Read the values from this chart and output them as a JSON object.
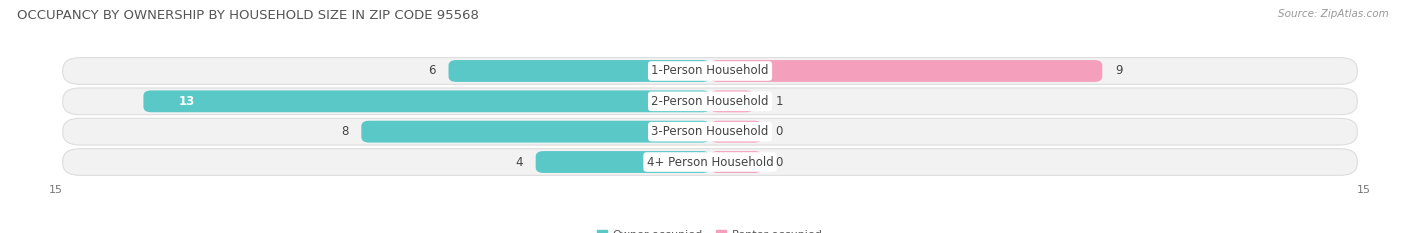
{
  "title": "OCCUPANCY BY OWNERSHIP BY HOUSEHOLD SIZE IN ZIP CODE 95568",
  "source": "Source: ZipAtlas.com",
  "categories": [
    "1-Person Household",
    "2-Person Household",
    "3-Person Household",
    "4+ Person Household"
  ],
  "owner_values": [
    6,
    13,
    8,
    4
  ],
  "renter_values": [
    9,
    1,
    0,
    0
  ],
  "owner_color": "#5BC8C8",
  "renter_color": "#F4A0BC",
  "row_bg_color": "#F2F2F2",
  "row_border_color": "#DDDDDD",
  "xlim": 15,
  "label_fontsize": 8.5,
  "title_fontsize": 9.5,
  "source_fontsize": 7.5,
  "tick_fontsize": 8,
  "legend_fontsize": 8,
  "bar_height": 0.72,
  "renter_stub_value": 1.2
}
